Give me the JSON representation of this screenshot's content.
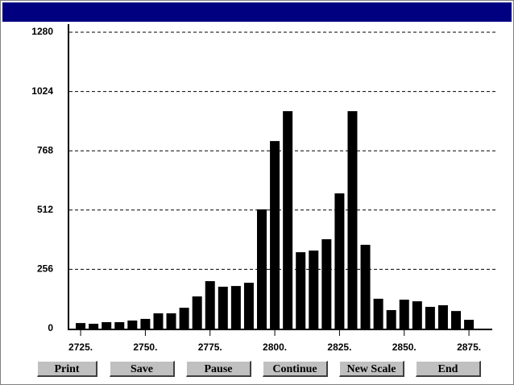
{
  "chart_data": {
    "type": "bar",
    "x": [
      2725,
      2730,
      2735,
      2740,
      2745,
      2750,
      2755,
      2760,
      2765,
      2770,
      2775,
      2780,
      2785,
      2790,
      2795,
      2800,
      2805,
      2810,
      2815,
      2820,
      2825,
      2830,
      2835,
      2840,
      2845,
      2850,
      2855,
      2860,
      2865,
      2870,
      2875
    ],
    "values": [
      24,
      21,
      28,
      28,
      35,
      42,
      66,
      66,
      90,
      139,
      205,
      181,
      184,
      198,
      515,
      810,
      939,
      330,
      337,
      386,
      584,
      939,
      362,
      129,
      80,
      125,
      118,
      94,
      101,
      76,
      38
    ],
    "color": "#000000",
    "xlim": [
      2720,
      2884
    ],
    "xticks": [
      {
        "value": 2725,
        "label": "2725."
      },
      {
        "value": 2750,
        "label": "2750."
      },
      {
        "value": 2775,
        "label": "2775."
      },
      {
        "value": 2800,
        "label": "2800."
      },
      {
        "value": 2825,
        "label": "2825."
      },
      {
        "value": 2850,
        "label": "2850."
      },
      {
        "value": 2875,
        "label": "2875."
      }
    ],
    "ylim": [
      0,
      1280
    ],
    "yticks": [
      0,
      256,
      512,
      768,
      1024,
      1280
    ],
    "grid": true
  },
  "buttons": [
    "Print",
    "Save",
    "Pause",
    "Continue",
    "New Scale",
    "End"
  ]
}
